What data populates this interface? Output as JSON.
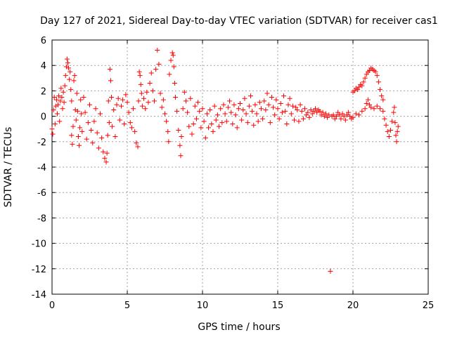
{
  "chart_data": {
    "type": "scatter",
    "title": "Day 127 of 2021, Sidereal Day-to-day VTEC variation (SDTVAR) for receiver cas1",
    "xlabel": "GPS time / hours",
    "ylabel": "SDTVAR / TECUs",
    "xlim": [
      0,
      25
    ],
    "ylim": [
      -14,
      6
    ],
    "xticks": [
      0,
      5,
      10,
      15,
      20,
      25
    ],
    "yticks": [
      -14,
      -12,
      -10,
      -8,
      -6,
      -4,
      -2,
      0,
      2,
      4,
      6
    ],
    "grid": true,
    "marker": "plus",
    "series": [
      {
        "name": "SDTVAR cas1",
        "color": "#ff0000",
        "points": [
          [
            0.0,
            -1.0
          ],
          [
            0.05,
            -1.4
          ],
          [
            0.1,
            0.5
          ],
          [
            0.15,
            1.5
          ],
          [
            0.2,
            -0.6
          ],
          [
            0.25,
            0.8
          ],
          [
            0.3,
            1.3
          ],
          [
            0.35,
            0.2
          ],
          [
            0.4,
            0.9
          ],
          [
            0.45,
            1.6
          ],
          [
            0.5,
            -0.4
          ],
          [
            0.55,
            1.2
          ],
          [
            0.6,
            2.2
          ],
          [
            0.65,
            1.5
          ],
          [
            0.7,
            0.6
          ],
          [
            0.75,
            1.9
          ],
          [
            0.8,
            1.1
          ],
          [
            0.85,
            2.4
          ],
          [
            0.9,
            3.2
          ],
          [
            0.95,
            3.9
          ],
          [
            1.0,
            4.5
          ],
          [
            1.05,
            4.2
          ],
          [
            1.1,
            3.8
          ],
          [
            1.15,
            2.9
          ],
          [
            1.2,
            3.5
          ],
          [
            1.25,
            2.1
          ],
          [
            1.3,
            -1.5
          ],
          [
            1.3,
            1.2
          ],
          [
            1.35,
            -2.2
          ],
          [
            1.4,
            -0.8
          ],
          [
            1.45,
            2.8
          ],
          [
            1.5,
            3.2
          ],
          [
            1.55,
            0.5
          ],
          [
            1.6,
            -0.3
          ],
          [
            1.65,
            1.8
          ],
          [
            1.7,
            0.4
          ],
          [
            1.75,
            -1.6
          ],
          [
            1.8,
            -2.3
          ],
          [
            1.85,
            -0.9
          ],
          [
            1.9,
            1.3
          ],
          [
            1.95,
            0.2
          ],
          [
            2.0,
            -1.2
          ],
          [
            2.1,
            1.5
          ],
          [
            2.2,
            0.3
          ],
          [
            2.3,
            -1.8
          ],
          [
            2.4,
            -0.5
          ],
          [
            2.5,
            0.9
          ],
          [
            2.6,
            -1.1
          ],
          [
            2.7,
            -2.1
          ],
          [
            2.8,
            -0.4
          ],
          [
            2.9,
            0.6
          ],
          [
            3.0,
            -1.3
          ],
          [
            3.1,
            -2.5
          ],
          [
            3.2,
            0.2
          ],
          [
            3.3,
            -1.7
          ],
          [
            3.4,
            -2.8
          ],
          [
            3.5,
            -3.3
          ],
          [
            3.6,
            -3.6
          ],
          [
            3.65,
            -2.9
          ],
          [
            3.7,
            -1.5
          ],
          [
            3.75,
            1.2
          ],
          [
            3.8,
            -0.5
          ],
          [
            3.85,
            3.7
          ],
          [
            3.9,
            2.8
          ],
          [
            3.95,
            1.5
          ],
          [
            4.0,
            -0.8
          ],
          [
            4.1,
            0.5
          ],
          [
            4.2,
            -1.6
          ],
          [
            4.3,
            0.9
          ],
          [
            4.4,
            1.4
          ],
          [
            4.5,
            -0.3
          ],
          [
            4.6,
            0.8
          ],
          [
            4.7,
            1.3
          ],
          [
            4.8,
            -0.6
          ],
          [
            4.9,
            1.7
          ],
          [
            5.0,
            1.1
          ],
          [
            5.1,
            0.3
          ],
          [
            5.2,
            -0.5
          ],
          [
            5.3,
            -0.9
          ],
          [
            5.4,
            0.6
          ],
          [
            5.5,
            -1.2
          ],
          [
            5.6,
            -2.1
          ],
          [
            5.7,
            -2.4
          ],
          [
            5.75,
            1.2
          ],
          [
            5.8,
            3.5
          ],
          [
            5.85,
            3.2
          ],
          [
            5.9,
            2.5
          ],
          [
            5.95,
            1.8
          ],
          [
            6.0,
            0.8
          ],
          [
            6.1,
            1.4
          ],
          [
            6.2,
            0.6
          ],
          [
            6.3,
            1.9
          ],
          [
            6.4,
            1.1
          ],
          [
            6.5,
            2.6
          ],
          [
            6.6,
            3.4
          ],
          [
            6.7,
            2.0
          ],
          [
            6.8,
            1.2
          ],
          [
            6.9,
            3.7
          ],
          [
            7.0,
            5.2
          ],
          [
            7.1,
            4.1
          ],
          [
            7.2,
            1.8
          ],
          [
            7.3,
            0.7
          ],
          [
            7.4,
            1.3
          ],
          [
            7.5,
            0.2
          ],
          [
            7.6,
            -0.4
          ],
          [
            7.7,
            -1.2
          ],
          [
            7.75,
            -2.0
          ],
          [
            7.8,
            3.3
          ],
          [
            7.9,
            4.4
          ],
          [
            8.0,
            5.0
          ],
          [
            8.05,
            4.8
          ],
          [
            8.1,
            3.9
          ],
          [
            8.15,
            2.6
          ],
          [
            8.2,
            1.5
          ],
          [
            8.3,
            0.4
          ],
          [
            8.4,
            -1.1
          ],
          [
            8.5,
            -2.3
          ],
          [
            8.55,
            -3.1
          ],
          [
            8.6,
            -1.6
          ],
          [
            8.7,
            0.6
          ],
          [
            8.8,
            1.9
          ],
          [
            8.9,
            1.2
          ],
          [
            9.0,
            0.3
          ],
          [
            9.1,
            -0.8
          ],
          [
            9.2,
            1.4
          ],
          [
            9.3,
            -1.4
          ],
          [
            9.4,
            -0.6
          ],
          [
            9.5,
            0.8
          ],
          [
            9.6,
            -0.2
          ],
          [
            9.7,
            1.1
          ],
          [
            9.8,
            0.4
          ],
          [
            9.9,
            -0.9
          ],
          [
            10.0,
            0.6
          ],
          [
            10.1,
            -0.4
          ],
          [
            10.2,
            -1.7
          ],
          [
            10.3,
            0.2
          ],
          [
            10.4,
            -0.9
          ],
          [
            10.5,
            0.5
          ],
          [
            10.6,
            -0.6
          ],
          [
            10.7,
            -1.2
          ],
          [
            10.8,
            0.8
          ],
          [
            10.9,
            -0.3
          ],
          [
            11.0,
            0.1
          ],
          [
            11.1,
            -0.8
          ],
          [
            11.2,
            0.6
          ],
          [
            11.3,
            -0.5
          ],
          [
            11.4,
            0.9
          ],
          [
            11.5,
            0.2
          ],
          [
            11.6,
            -0.4
          ],
          [
            11.7,
            0.7
          ],
          [
            11.8,
            1.2
          ],
          [
            11.9,
            0.3
          ],
          [
            12.0,
            -0.6
          ],
          [
            12.1,
            0.9
          ],
          [
            12.2,
            0.1
          ],
          [
            12.3,
            -0.9
          ],
          [
            12.4,
            0.6
          ],
          [
            12.5,
            1.0
          ],
          [
            12.6,
            -0.3
          ],
          [
            12.7,
            0.5
          ],
          [
            12.8,
            1.4
          ],
          [
            12.9,
            0.2
          ],
          [
            13.0,
            -0.5
          ],
          [
            13.1,
            0.8
          ],
          [
            13.2,
            1.6
          ],
          [
            13.3,
            0.4
          ],
          [
            13.4,
            -0.7
          ],
          [
            13.5,
            0.9
          ],
          [
            13.6,
            0.2
          ],
          [
            13.7,
            -0.4
          ],
          [
            13.8,
            1.1
          ],
          [
            13.9,
            0.6
          ],
          [
            14.0,
            -0.2
          ],
          [
            14.1,
            1.2
          ],
          [
            14.2,
            0.5
          ],
          [
            14.3,
            1.8
          ],
          [
            14.4,
            0.9
          ],
          [
            14.5,
            -0.5
          ],
          [
            14.6,
            1.5
          ],
          [
            14.7,
            0.7
          ],
          [
            14.8,
            0.1
          ],
          [
            14.9,
            1.3
          ],
          [
            15.0,
            0.6
          ],
          [
            15.1,
            -0.2
          ],
          [
            15.2,
            1.0
          ],
          [
            15.3,
            0.3
          ],
          [
            15.4,
            1.6
          ],
          [
            15.5,
            0.4
          ],
          [
            15.6,
            -0.6
          ],
          [
            15.7,
            0.9
          ],
          [
            15.8,
            1.4
          ],
          [
            15.9,
            0.2
          ],
          [
            16.0,
            0.8
          ],
          [
            16.1,
            -0.3
          ],
          [
            16.2,
            0.7
          ],
          [
            16.3,
            0.5
          ],
          [
            16.4,
            -0.4
          ],
          [
            16.5,
            0.9
          ],
          [
            16.6,
            0.4
          ],
          [
            16.7,
            -0.2
          ],
          [
            16.8,
            0.6
          ],
          [
            16.9,
            0.1
          ],
          [
            17.0,
            0.3
          ],
          [
            17.1,
            -0.1
          ],
          [
            17.2,
            0.5
          ],
          [
            17.3,
            0.2
          ],
          [
            17.4,
            0.4
          ],
          [
            17.5,
            0.6
          ],
          [
            17.6,
            0.3
          ],
          [
            17.7,
            0.5
          ],
          [
            17.8,
            0.4
          ],
          [
            17.9,
            0.1
          ],
          [
            18.0,
            0.3
          ],
          [
            18.1,
            0.0
          ],
          [
            18.2,
            0.2
          ],
          [
            18.3,
            -0.1
          ],
          [
            18.4,
            0.1
          ],
          [
            18.5,
            -12.2
          ],
          [
            18.6,
            0.0
          ],
          [
            18.7,
            0.1
          ],
          [
            18.8,
            -0.2
          ],
          [
            18.9,
            0.0
          ],
          [
            19.0,
            0.3
          ],
          [
            19.1,
            0.1
          ],
          [
            19.2,
            -0.2
          ],
          [
            19.3,
            0.2
          ],
          [
            19.4,
            0.0
          ],
          [
            19.5,
            -0.3
          ],
          [
            19.6,
            0.1
          ],
          [
            19.7,
            0.3
          ],
          [
            19.8,
            0.0
          ],
          [
            19.9,
            -0.2
          ],
          [
            20.0,
            1.9
          ],
          [
            20.1,
            2.0
          ],
          [
            20.2,
            2.2
          ],
          [
            20.3,
            2.1
          ],
          [
            20.4,
            2.3
          ],
          [
            20.5,
            2.5
          ],
          [
            20.6,
            2.4
          ],
          [
            20.7,
            2.7
          ],
          [
            20.8,
            3.0
          ],
          [
            20.9,
            3.3
          ],
          [
            21.0,
            3.5
          ],
          [
            21.1,
            3.6
          ],
          [
            21.2,
            3.8
          ],
          [
            21.3,
            3.7
          ],
          [
            21.4,
            3.6
          ],
          [
            21.5,
            3.5
          ],
          [
            21.6,
            3.2
          ],
          [
            21.7,
            2.7
          ],
          [
            21.8,
            2.1
          ],
          [
            21.9,
            1.6
          ],
          [
            22.0,
            1.3
          ],
          [
            20.0,
            -0.1
          ],
          [
            20.2,
            0.2
          ],
          [
            20.4,
            0.1
          ],
          [
            20.6,
            0.4
          ],
          [
            20.8,
            0.6
          ],
          [
            20.9,
            1.0
          ],
          [
            21.0,
            1.3
          ],
          [
            21.1,
            0.9
          ],
          [
            21.2,
            0.7
          ],
          [
            21.4,
            0.6
          ],
          [
            21.6,
            0.8
          ],
          [
            21.8,
            0.6
          ],
          [
            22.0,
            0.4
          ],
          [
            22.1,
            -0.2
          ],
          [
            22.2,
            -0.7
          ],
          [
            22.3,
            -1.2
          ],
          [
            22.4,
            -1.6
          ],
          [
            22.5,
            -1.1
          ],
          [
            22.6,
            -0.4
          ],
          [
            22.7,
            0.3
          ],
          [
            22.75,
            0.7
          ],
          [
            22.8,
            -0.5
          ],
          [
            22.85,
            -1.5
          ],
          [
            22.9,
            -2.0
          ],
          [
            22.95,
            -1.2
          ],
          [
            23.0,
            -0.8
          ]
        ]
      }
    ]
  }
}
